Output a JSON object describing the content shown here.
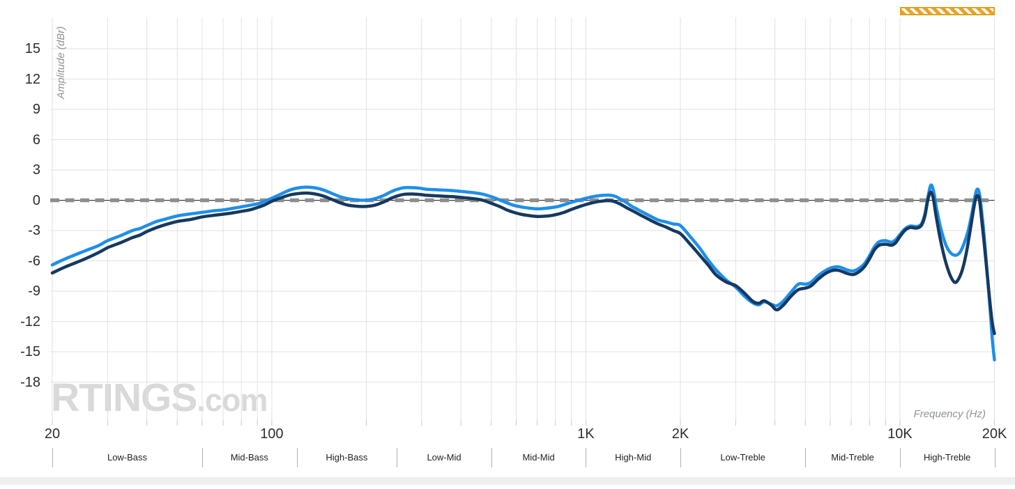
{
  "watermark": {
    "brand": "RTINGS",
    "suffix": ".com"
  },
  "colors": {
    "light_curve": "#1e8fea",
    "dark_curve": "#16395f",
    "grid": "#e2e2e2",
    "tick_mark": "#c8c8c8",
    "target_dash": "#8e8e8e",
    "target_line": "#222222",
    "band_separator": "#b0b0b0",
    "uncertainty_orange": "#e7a427",
    "watermark_gray": "#d9d9d9",
    "scrollbar_gray": "#efefef"
  },
  "chart_data": {
    "type": "line",
    "xlabel": "Frequency (Hz)",
    "ylabel": "Amplitude (dBr)",
    "x_scale": "log",
    "x_range": [
      20,
      20000
    ],
    "ylim": [
      -22,
      18
    ],
    "grid": true,
    "target_line_db": 0,
    "uncertainty_band_hz": [
      10000,
      20000
    ],
    "y_ticks": [
      15,
      12,
      9,
      6,
      3,
      0,
      -3,
      -6,
      -9,
      -12,
      -15,
      -18
    ],
    "x_ticks": [
      {
        "f": 20,
        "label": "20"
      },
      {
        "f": 100,
        "label": "100"
      },
      {
        "f": 1000,
        "label": "1K"
      },
      {
        "f": 2000,
        "label": "2K"
      },
      {
        "f": 10000,
        "label": "10K"
      },
      {
        "f": 20000,
        "label": "20K"
      }
    ],
    "x_gridlines_hz": [
      20,
      30,
      40,
      50,
      60,
      70,
      80,
      90,
      100,
      200,
      300,
      400,
      500,
      600,
      700,
      800,
      900,
      1000,
      2000,
      3000,
      4000,
      5000,
      6000,
      7000,
      8000,
      9000,
      10000,
      20000
    ],
    "bands": [
      {
        "label": "Low-Bass",
        "from": 20,
        "to": 60
      },
      {
        "label": "Mid-Bass",
        "from": 60,
        "to": 120
      },
      {
        "label": "High-Bass",
        "from": 120,
        "to": 250
      },
      {
        "label": "Low-Mid",
        "from": 250,
        "to": 500
      },
      {
        "label": "Mid-Mid",
        "from": 500,
        "to": 1000
      },
      {
        "label": "High-Mid",
        "from": 1000,
        "to": 2000
      },
      {
        "label": "Low-Treble",
        "from": 2000,
        "to": 5000
      },
      {
        "label": "Mid-Treble",
        "from": 5000,
        "to": 10000
      },
      {
        "label": "High-Treble",
        "from": 10000,
        "to": 20000
      }
    ],
    "series": [
      {
        "name": "light-blue-curve",
        "color": "#1e8fea",
        "stroke_width": 4.5,
        "points": [
          [
            20,
            -6.4
          ],
          [
            22,
            -5.8
          ],
          [
            25,
            -5.1
          ],
          [
            28,
            -4.5
          ],
          [
            30,
            -4.0
          ],
          [
            33,
            -3.5
          ],
          [
            36,
            -3.0
          ],
          [
            38,
            -2.8
          ],
          [
            40,
            -2.5
          ],
          [
            43,
            -2.1
          ],
          [
            46,
            -1.85
          ],
          [
            50,
            -1.55
          ],
          [
            55,
            -1.35
          ],
          [
            60,
            -1.2
          ],
          [
            65,
            -1.05
          ],
          [
            70,
            -0.95
          ],
          [
            75,
            -0.8
          ],
          [
            80,
            -0.65
          ],
          [
            85,
            -0.5
          ],
          [
            90,
            -0.35
          ],
          [
            95,
            -0.1
          ],
          [
            100,
            0.2
          ],
          [
            105,
            0.5
          ],
          [
            110,
            0.8
          ],
          [
            115,
            1.05
          ],
          [
            120,
            1.2
          ],
          [
            128,
            1.3
          ],
          [
            136,
            1.25
          ],
          [
            145,
            1.05
          ],
          [
            155,
            0.7
          ],
          [
            165,
            0.35
          ],
          [
            175,
            0.15
          ],
          [
            185,
            0.05
          ],
          [
            195,
            0.0
          ],
          [
            205,
            0.05
          ],
          [
            215,
            0.2
          ],
          [
            228,
            0.5
          ],
          [
            240,
            0.85
          ],
          [
            252,
            1.1
          ],
          [
            265,
            1.25
          ],
          [
            280,
            1.25
          ],
          [
            295,
            1.2
          ],
          [
            310,
            1.1
          ],
          [
            330,
            1.05
          ],
          [
            355,
            1.0
          ],
          [
            380,
            0.95
          ],
          [
            410,
            0.85
          ],
          [
            440,
            0.75
          ],
          [
            470,
            0.6
          ],
          [
            500,
            0.35
          ],
          [
            530,
            0.05
          ],
          [
            560,
            -0.25
          ],
          [
            590,
            -0.5
          ],
          [
            620,
            -0.65
          ],
          [
            660,
            -0.78
          ],
          [
            700,
            -0.85
          ],
          [
            740,
            -0.8
          ],
          [
            780,
            -0.72
          ],
          [
            820,
            -0.6
          ],
          [
            860,
            -0.4
          ],
          [
            900,
            -0.2
          ],
          [
            950,
            0.0
          ],
          [
            1000,
            0.2
          ],
          [
            1050,
            0.35
          ],
          [
            1100,
            0.45
          ],
          [
            1150,
            0.5
          ],
          [
            1200,
            0.5
          ],
          [
            1250,
            0.35
          ],
          [
            1300,
            0.05
          ],
          [
            1350,
            -0.25
          ],
          [
            1400,
            -0.6
          ],
          [
            1450,
            -0.85
          ],
          [
            1500,
            -1.1
          ],
          [
            1600,
            -1.55
          ],
          [
            1700,
            -1.95
          ],
          [
            1800,
            -2.15
          ],
          [
            1900,
            -2.35
          ],
          [
            2000,
            -2.5
          ],
          [
            2150,
            -3.6
          ],
          [
            2300,
            -4.7
          ],
          [
            2450,
            -5.9
          ],
          [
            2600,
            -6.9
          ],
          [
            2800,
            -7.9
          ],
          [
            3000,
            -8.6
          ],
          [
            3200,
            -9.5
          ],
          [
            3400,
            -10.15
          ],
          [
            3550,
            -10.35
          ],
          [
            3700,
            -10.05
          ],
          [
            3900,
            -10.3
          ],
          [
            4050,
            -10.45
          ],
          [
            4250,
            -10.0
          ],
          [
            4500,
            -9.1
          ],
          [
            4750,
            -8.3
          ],
          [
            5000,
            -8.3
          ],
          [
            5200,
            -8.15
          ],
          [
            5500,
            -7.45
          ],
          [
            5800,
            -6.95
          ],
          [
            6100,
            -6.65
          ],
          [
            6400,
            -6.6
          ],
          [
            6800,
            -6.9
          ],
          [
            7100,
            -7.0
          ],
          [
            7400,
            -6.75
          ],
          [
            7700,
            -6.3
          ],
          [
            8000,
            -5.5
          ],
          [
            8300,
            -4.6
          ],
          [
            8600,
            -4.1
          ],
          [
            9000,
            -4.0
          ],
          [
            9400,
            -4.15
          ],
          [
            9700,
            -3.9
          ],
          [
            10000,
            -3.4
          ],
          [
            10400,
            -2.8
          ],
          [
            10800,
            -2.55
          ],
          [
            11300,
            -2.6
          ],
          [
            11700,
            -2.35
          ],
          [
            12000,
            -1.4
          ],
          [
            12300,
            0.4
          ],
          [
            12550,
            1.5
          ],
          [
            12800,
            0.9
          ],
          [
            13100,
            -0.9
          ],
          [
            13500,
            -2.8
          ],
          [
            14000,
            -4.4
          ],
          [
            14500,
            -5.2
          ],
          [
            15000,
            -5.45
          ],
          [
            15500,
            -5.2
          ],
          [
            16000,
            -4.3
          ],
          [
            16500,
            -3.0
          ],
          [
            17000,
            -1.1
          ],
          [
            17400,
            0.6
          ],
          [
            17650,
            1.1
          ],
          [
            17900,
            0.7
          ],
          [
            18200,
            -1.0
          ],
          [
            18600,
            -4.0
          ],
          [
            19000,
            -7.5
          ],
          [
            19400,
            -11.0
          ],
          [
            19700,
            -13.8
          ],
          [
            20000,
            -15.8
          ]
        ]
      },
      {
        "name": "dark-navy-curve",
        "color": "#16395f",
        "stroke_width": 4.5,
        "points": [
          [
            20,
            -7.2
          ],
          [
            22,
            -6.6
          ],
          [
            25,
            -5.9
          ],
          [
            28,
            -5.2
          ],
          [
            30,
            -4.7
          ],
          [
            33,
            -4.2
          ],
          [
            36,
            -3.7
          ],
          [
            38,
            -3.45
          ],
          [
            40,
            -3.1
          ],
          [
            43,
            -2.7
          ],
          [
            46,
            -2.4
          ],
          [
            50,
            -2.1
          ],
          [
            55,
            -1.9
          ],
          [
            60,
            -1.65
          ],
          [
            65,
            -1.5
          ],
          [
            70,
            -1.38
          ],
          [
            75,
            -1.25
          ],
          [
            80,
            -1.1
          ],
          [
            85,
            -0.95
          ],
          [
            90,
            -0.72
          ],
          [
            95,
            -0.45
          ],
          [
            100,
            -0.1
          ],
          [
            105,
            0.15
          ],
          [
            110,
            0.38
          ],
          [
            115,
            0.55
          ],
          [
            120,
            0.65
          ],
          [
            128,
            0.72
          ],
          [
            136,
            0.65
          ],
          [
            145,
            0.45
          ],
          [
            155,
            0.1
          ],
          [
            165,
            -0.25
          ],
          [
            175,
            -0.48
          ],
          [
            185,
            -0.58
          ],
          [
            195,
            -0.62
          ],
          [
            205,
            -0.58
          ],
          [
            215,
            -0.45
          ],
          [
            228,
            -0.15
          ],
          [
            240,
            0.2
          ],
          [
            252,
            0.45
          ],
          [
            265,
            0.6
          ],
          [
            280,
            0.62
          ],
          [
            295,
            0.58
          ],
          [
            310,
            0.5
          ],
          [
            330,
            0.45
          ],
          [
            355,
            0.4
          ],
          [
            380,
            0.35
          ],
          [
            410,
            0.25
          ],
          [
            440,
            0.15
          ],
          [
            470,
            0.0
          ],
          [
            500,
            -0.3
          ],
          [
            530,
            -0.6
          ],
          [
            560,
            -0.95
          ],
          [
            590,
            -1.2
          ],
          [
            620,
            -1.38
          ],
          [
            660,
            -1.52
          ],
          [
            700,
            -1.6
          ],
          [
            740,
            -1.58
          ],
          [
            780,
            -1.5
          ],
          [
            820,
            -1.35
          ],
          [
            860,
            -1.15
          ],
          [
            900,
            -0.9
          ],
          [
            950,
            -0.65
          ],
          [
            1000,
            -0.42
          ],
          [
            1050,
            -0.25
          ],
          [
            1100,
            -0.12
          ],
          [
            1150,
            -0.05
          ],
          [
            1200,
            -0.05
          ],
          [
            1250,
            -0.2
          ],
          [
            1300,
            -0.45
          ],
          [
            1350,
            -0.75
          ],
          [
            1400,
            -1.0
          ],
          [
            1450,
            -1.25
          ],
          [
            1500,
            -1.5
          ],
          [
            1600,
            -1.95
          ],
          [
            1700,
            -2.35
          ],
          [
            1800,
            -2.65
          ],
          [
            1900,
            -3.0
          ],
          [
            2000,
            -3.3
          ],
          [
            2150,
            -4.35
          ],
          [
            2300,
            -5.4
          ],
          [
            2450,
            -6.4
          ],
          [
            2600,
            -7.4
          ],
          [
            2800,
            -8.1
          ],
          [
            3000,
            -8.45
          ],
          [
            3200,
            -9.2
          ],
          [
            3400,
            -10.0
          ],
          [
            3550,
            -10.2
          ],
          [
            3700,
            -9.95
          ],
          [
            3900,
            -10.4
          ],
          [
            4050,
            -10.85
          ],
          [
            4250,
            -10.4
          ],
          [
            4500,
            -9.5
          ],
          [
            4750,
            -8.85
          ],
          [
            5000,
            -8.7
          ],
          [
            5200,
            -8.5
          ],
          [
            5500,
            -7.8
          ],
          [
            5800,
            -7.25
          ],
          [
            6100,
            -6.95
          ],
          [
            6400,
            -6.95
          ],
          [
            6800,
            -7.25
          ],
          [
            7100,
            -7.35
          ],
          [
            7400,
            -7.1
          ],
          [
            7700,
            -6.6
          ],
          [
            8000,
            -5.8
          ],
          [
            8300,
            -4.9
          ],
          [
            8600,
            -4.45
          ],
          [
            9000,
            -4.35
          ],
          [
            9400,
            -4.45
          ],
          [
            9700,
            -4.2
          ],
          [
            10000,
            -3.6
          ],
          [
            10400,
            -2.95
          ],
          [
            10800,
            -2.7
          ],
          [
            11300,
            -2.75
          ],
          [
            11700,
            -2.5
          ],
          [
            12000,
            -1.6
          ],
          [
            12250,
            -0.1
          ],
          [
            12500,
            0.8
          ],
          [
            12750,
            0.3
          ],
          [
            13000,
            -1.3
          ],
          [
            13400,
            -3.6
          ],
          [
            13900,
            -5.8
          ],
          [
            14400,
            -7.3
          ],
          [
            14900,
            -8.1
          ],
          [
            15300,
            -7.9
          ],
          [
            15800,
            -6.9
          ],
          [
            16300,
            -5.1
          ],
          [
            16800,
            -2.7
          ],
          [
            17300,
            -0.3
          ],
          [
            17600,
            0.45
          ],
          [
            17900,
            0.1
          ],
          [
            18200,
            -1.8
          ],
          [
            18600,
            -4.6
          ],
          [
            19000,
            -7.6
          ],
          [
            19400,
            -10.4
          ],
          [
            19700,
            -12.2
          ],
          [
            20000,
            -13.2
          ]
        ]
      }
    ]
  }
}
